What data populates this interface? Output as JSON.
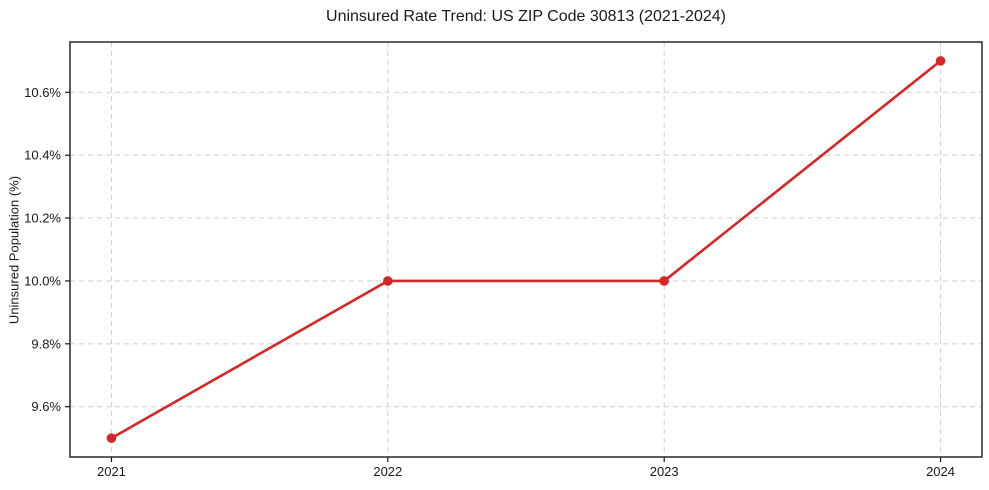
{
  "figure": {
    "background": "#ffffff"
  },
  "chart_data": {
    "type": "line",
    "title": "Uninsured Rate Trend: US ZIP Code 30813 (2021-2024)",
    "xlabel": "",
    "ylabel": "Uninsured Population (%)",
    "x": [
      2021,
      2022,
      2023,
      2024
    ],
    "values": [
      9.5,
      10.0,
      10.0,
      10.7
    ],
    "xlim": [
      2020.85,
      2024.15
    ],
    "ylim": [
      9.44,
      10.76
    ],
    "xticks": [
      2021,
      2022,
      2023,
      2024
    ],
    "xtick_labels": [
      "2021",
      "2022",
      "2023",
      "2024"
    ],
    "yticks": [
      9.6,
      9.8,
      10.0,
      10.2,
      10.4,
      10.6
    ],
    "ytick_labels": [
      "9.6%",
      "9.8%",
      "10.0%",
      "10.2%",
      "10.4%",
      "10.6%"
    ],
    "grid": true,
    "grid_style": "dashed",
    "legend": false,
    "line_color": "#d62728",
    "marker": "circle",
    "grid_color": "#cfcfcf",
    "axis_color": "#1a1a1a"
  }
}
